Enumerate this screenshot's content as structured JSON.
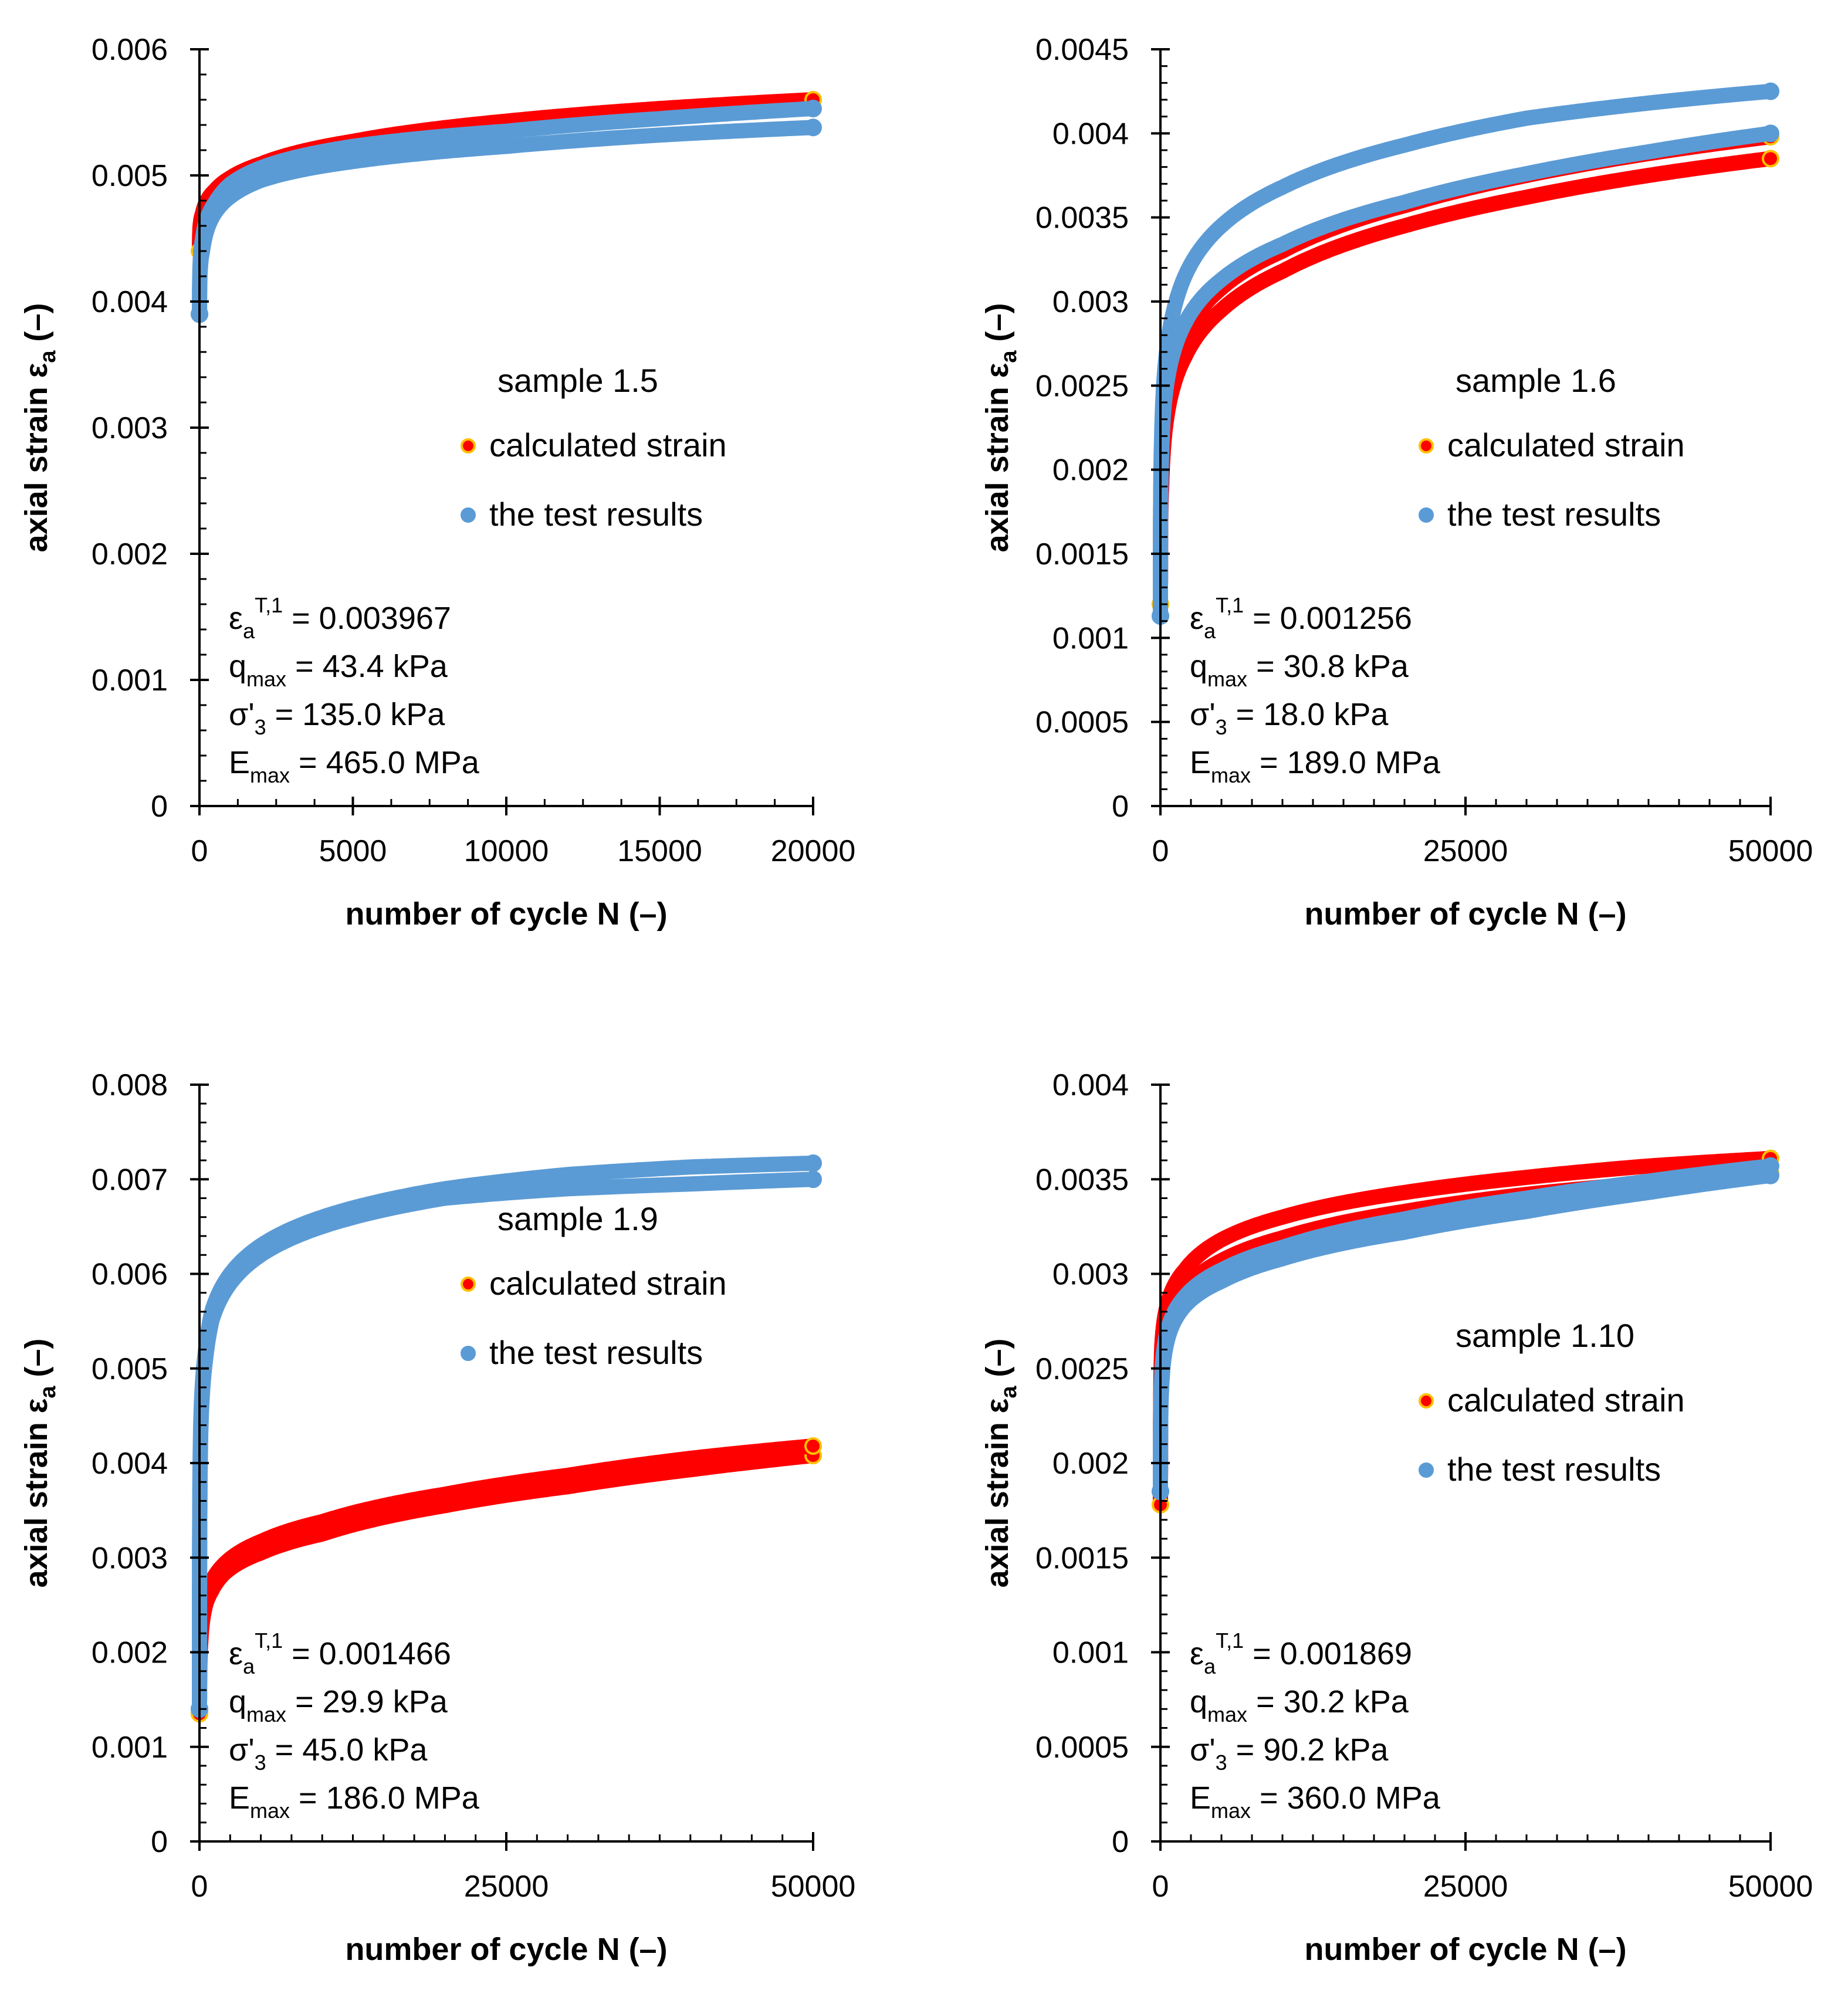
{
  "chart_data": [
    {
      "type": "scatter",
      "title": "",
      "xlabel": "number of cycle N (–)",
      "ylabel": "axial strain ε",
      "ylabel_sub": "a",
      "ylabel_unit": " (–)",
      "xlim": [
        0,
        20000
      ],
      "ylim": [
        0,
        0.006
      ],
      "xticks": [
        0,
        5000,
        10000,
        15000,
        20000
      ],
      "yticks": [
        0,
        0.001,
        0.002,
        0.003,
        0.004,
        0.005,
        0.006
      ],
      "xtick_labels": [
        "0",
        "5000",
        "10000",
        "15000",
        "20000"
      ],
      "ytick_labels": [
        "0",
        "0.001",
        "0.002",
        "0.003",
        "0.004",
        "0.005",
        "0.006"
      ],
      "grid": false,
      "legend_title": "sample 1.5",
      "series": [
        {
          "name": "calculated strain",
          "color": "#ff0000",
          "edge": "#ffc000",
          "bands": [
            {
              "x": [
                1,
                100,
                500,
                1000,
                2000,
                5000,
                10000,
                15000,
                20000
              ],
              "y": [
                0.0044,
                0.0047,
                0.00488,
                0.00498,
                0.00509,
                0.00527,
                0.00543,
                0.00553,
                0.0056
              ]
            }
          ]
        },
        {
          "name": "the test results",
          "color": "#5b9bd5",
          "edge": "#5b9bd5",
          "bands": [
            {
              "x": [
                1,
                100,
                500,
                1000,
                2000,
                5000,
                10000,
                15000,
                20000
              ],
              "y": [
                0.0039,
                0.0045,
                0.00478,
                0.00493,
                0.00506,
                0.00523,
                0.00535,
                0.00545,
                0.00553
              ]
            },
            {
              "x": [
                1,
                100,
                500,
                1000,
                2000,
                5000,
                10000,
                15000,
                20000
              ],
              "y": [
                0.0039,
                0.0044,
                0.0047,
                0.00483,
                0.00496,
                0.00511,
                0.00523,
                0.00532,
                0.00538
              ]
            }
          ]
        }
      ],
      "params": [
        {
          "base": "ε",
          "sub": "a",
          "sup": "T,1",
          "value": " = 0.003967"
        },
        {
          "base": "q",
          "sub": "max",
          "sup": "",
          "value": " = 43.4 kPa"
        },
        {
          "base": "σ'",
          "sub": "3",
          "sup": "",
          "value": " = 135.0 kPa"
        },
        {
          "base": "E",
          "sub": "max",
          "sup": "",
          "value": " = 465.0 MPa"
        }
      ]
    },
    {
      "type": "scatter",
      "title": "",
      "xlabel": "number of cycle N (–)",
      "ylabel": "axial strain ε",
      "ylabel_sub": "a",
      "ylabel_unit": " (–)",
      "xlim": [
        0,
        50000
      ],
      "ylim": [
        0,
        0.0045
      ],
      "xticks": [
        0,
        25000,
        50000
      ],
      "yticks": [
        0,
        0.0005,
        0.001,
        0.0015,
        0.002,
        0.0025,
        0.003,
        0.0035,
        0.004,
        0.0045
      ],
      "xtick_labels": [
        "0",
        "25000",
        "50000"
      ],
      "ytick_labels": [
        "0",
        "0.0005",
        "0.001",
        "0.0015",
        "0.002",
        "0.0025",
        "0.003",
        "0.0035",
        "0.004",
        "0.0045"
      ],
      "grid": false,
      "legend_title": "sample 1.6",
      "series": [
        {
          "name": "calculated strain",
          "color": "#ff0000",
          "edge": "#ffc000",
          "bands": [
            {
              "x": [
                1,
                100,
                500,
                1000,
                2000,
                5000,
                10000,
                20000,
                30000,
                40000,
                50000
              ],
              "y": [
                0.0012,
                0.0019,
                0.0023,
                0.00248,
                0.00267,
                0.00295,
                0.00318,
                0.00345,
                0.00362,
                0.00375,
                0.00385
              ]
            },
            {
              "x": [
                1,
                100,
                500,
                1000,
                2000,
                5000,
                10000,
                20000,
                30000,
                40000,
                50000
              ],
              "y": [
                0.0012,
                0.002,
                0.0024,
                0.0026,
                0.0028,
                0.00308,
                0.0033,
                0.00357,
                0.00375,
                0.00388,
                0.00398
              ]
            }
          ]
        },
        {
          "name": "the test results",
          "color": "#5b9bd5",
          "edge": "#5b9bd5",
          "bands": [
            {
              "x": [
                1,
                100,
                500,
                1000,
                2000,
                5000,
                10000,
                20000,
                30000,
                40000,
                50000
              ],
              "y": [
                0.00113,
                0.0021,
                0.0025,
                0.00268,
                0.00287,
                0.00313,
                0.00334,
                0.00359,
                0.00376,
                0.00389,
                0.004
              ]
            },
            {
              "x": [
                1,
                100,
                500,
                1000,
                2000,
                5000,
                10000,
                20000,
                30000,
                40000,
                50000
              ],
              "y": [
                0.00113,
                0.0022,
                0.0027,
                0.00292,
                0.00315,
                0.00345,
                0.00368,
                0.00393,
                0.00409,
                0.00418,
                0.00425
              ]
            }
          ]
        }
      ],
      "params": [
        {
          "base": "ε",
          "sub": "a",
          "sup": "T,1",
          "value": " = 0.001256"
        },
        {
          "base": "q",
          "sub": "max",
          "sup": "",
          "value": " = 30.8 kPa"
        },
        {
          "base": "σ'",
          "sub": "3",
          "sup": "",
          "value": " = 18.0 kPa"
        },
        {
          "base": "E",
          "sub": "max",
          "sup": "",
          "value": " = 189.0 MPa"
        }
      ]
    },
    {
      "type": "scatter",
      "title": "",
      "xlabel": "number of cycle N (–)",
      "ylabel": "axial strain ε",
      "ylabel_sub": "a",
      "ylabel_unit": " (–)",
      "xlim": [
        0,
        50000
      ],
      "ylim": [
        0,
        0.008
      ],
      "xticks": [
        0,
        25000,
        50000
      ],
      "yticks": [
        0,
        0.001,
        0.002,
        0.003,
        0.004,
        0.005,
        0.006,
        0.007,
        0.008
      ],
      "xtick_labels": [
        "0",
        "25000",
        "50000"
      ],
      "ytick_labels": [
        "0",
        "0.001",
        "0.002",
        "0.003",
        "0.004",
        "0.005",
        "0.006",
        "0.007",
        "0.008"
      ],
      "grid": false,
      "legend_title": "sample 1.9",
      "series": [
        {
          "name": "calculated strain",
          "color": "#ff0000",
          "edge": "#ffc000",
          "bands": [
            {
              "x": [
                1,
                100,
                500,
                1000,
                2000,
                5000,
                10000,
                20000,
                30000,
                40000,
                50000
              ],
              "y": [
                0.00135,
                0.0021,
                0.0025,
                0.00265,
                0.00283,
                0.00305,
                0.00325,
                0.00355,
                0.00375,
                0.00393,
                0.00408
              ]
            },
            {
              "x": [
                1,
                100,
                500,
                1000,
                2000,
                5000,
                10000,
                20000,
                30000,
                40000,
                50000
              ],
              "y": [
                0.00135,
                0.0022,
                0.0026,
                0.00275,
                0.00293,
                0.00317,
                0.00338,
                0.00367,
                0.00387,
                0.00405,
                0.00418
              ]
            }
          ]
        },
        {
          "name": "the test results",
          "color": "#5b9bd5",
          "edge": "#5b9bd5",
          "bands": [
            {
              "x": [
                1,
                100,
                500,
                1000,
                2000,
                5000,
                10000,
                20000,
                30000,
                40000,
                50000
              ],
              "y": [
                0.0014,
                0.0043,
                0.0051,
                0.0055,
                0.0058,
                0.0062,
                0.0065,
                0.0068,
                0.0069,
                0.00695,
                0.007
              ]
            },
            {
              "x": [
                1,
                100,
                500,
                1000,
                2000,
                5000,
                10000,
                20000,
                30000,
                40000,
                50000
              ],
              "y": [
                0.0014,
                0.0044,
                0.0052,
                0.0056,
                0.0059,
                0.0063,
                0.0066,
                0.0069,
                0.00705,
                0.00713,
                0.00717
              ]
            }
          ]
        }
      ],
      "params": [
        {
          "base": "ε",
          "sub": "a",
          "sup": "T,1",
          "value": " = 0.001466"
        },
        {
          "base": "q",
          "sub": "max",
          "sup": "",
          "value": " = 29.9 kPa"
        },
        {
          "base": "σ'",
          "sub": "3",
          "sup": "",
          "value": " = 45.0 kPa"
        },
        {
          "base": "E",
          "sub": "max",
          "sup": "",
          "value": " = 186.0 MPa"
        }
      ]
    },
    {
      "type": "scatter",
      "title": "",
      "xlabel": "number of cycle N (–)",
      "ylabel": "axial strain ε",
      "ylabel_sub": "a",
      "ylabel_unit": " (–)",
      "xlim": [
        0,
        50000
      ],
      "ylim": [
        0,
        0.004
      ],
      "xticks": [
        0,
        25000,
        50000
      ],
      "yticks": [
        0,
        0.0005,
        0.001,
        0.0015,
        0.002,
        0.0025,
        0.003,
        0.0035,
        0.004
      ],
      "xtick_labels": [
        "0",
        "25000",
        "50000"
      ],
      "ytick_labels": [
        "0",
        "0.0005",
        "0.001",
        "0.0015",
        "0.002",
        "0.0025",
        "0.003",
        "0.0035",
        "0.004"
      ],
      "grid": false,
      "legend_title": "sample 1.10",
      "series": [
        {
          "name": "calculated strain",
          "color": "#ff0000",
          "edge": "#ffc000",
          "bands": [
            {
              "x": [
                1,
                100,
                500,
                1000,
                2000,
                5000,
                10000,
                20000,
                30000,
                40000,
                50000
              ],
              "y": [
                0.00178,
                0.0025,
                0.00272,
                0.00282,
                0.00292,
                0.00307,
                0.00319,
                0.00333,
                0.00342,
                0.00348,
                0.00353
              ]
            },
            {
              "x": [
                1,
                100,
                500,
                1000,
                2000,
                5000,
                10000,
                20000,
                30000,
                40000,
                50000
              ],
              "y": [
                0.00178,
                0.0026,
                0.00282,
                0.00292,
                0.00302,
                0.00318,
                0.0033,
                0.00343,
                0.00351,
                0.00357,
                0.00361
              ]
            }
          ]
        },
        {
          "name": "the test results",
          "color": "#5b9bd5",
          "edge": "#5b9bd5",
          "bands": [
            {
              "x": [
                1,
                100,
                500,
                1000,
                2000,
                5000,
                10000,
                20000,
                30000,
                40000,
                50000
              ],
              "y": [
                0.00185,
                0.0024,
                0.00263,
                0.00273,
                0.00283,
                0.00296,
                0.00308,
                0.00322,
                0.00333,
                0.00343,
                0.00352
              ]
            },
            {
              "x": [
                1,
                100,
                500,
                1000,
                2000,
                5000,
                10000,
                20000,
                30000,
                40000,
                50000
              ],
              "y": [
                0.00185,
                0.00245,
                0.00268,
                0.00278,
                0.00288,
                0.00302,
                0.00314,
                0.00329,
                0.0034,
                0.00349,
                0.00357
              ]
            }
          ]
        }
      ],
      "params": [
        {
          "base": "ε",
          "sub": "a",
          "sup": "T,1",
          "value": " = 0.001869"
        },
        {
          "base": "q",
          "sub": "max",
          "sup": "",
          "value": " = 30.2 kPa"
        },
        {
          "base": "σ'",
          "sub": "3",
          "sup": "",
          "value": " = 90.2 kPa"
        },
        {
          "base": "E",
          "sub": "max",
          "sup": "",
          "value": " = 360.0 MPa"
        }
      ]
    }
  ]
}
